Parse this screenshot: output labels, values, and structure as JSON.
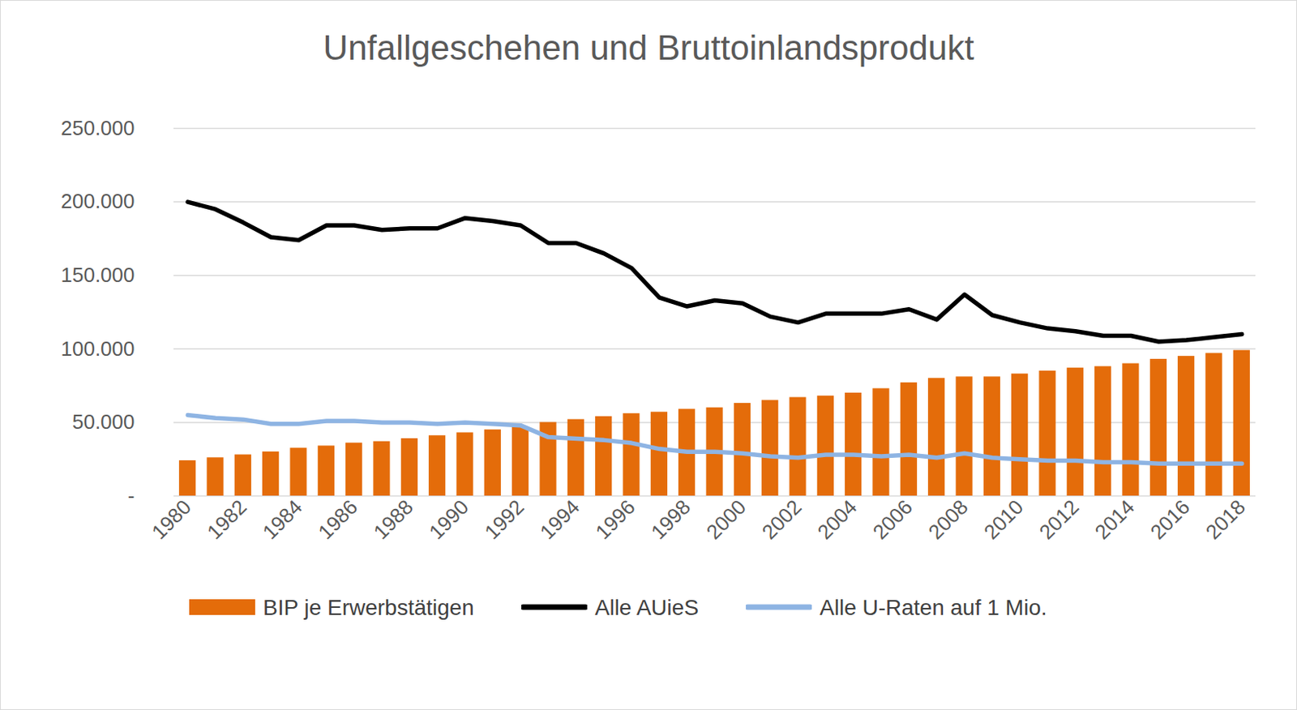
{
  "chart_data": {
    "type": "bar",
    "title": "Unfallgeschehen und Bruttoinlandsprodukt",
    "categories": [
      "1980",
      null,
      "1982",
      null,
      "1984",
      null,
      "1986",
      null,
      "1988",
      null,
      "1990",
      null,
      "1992",
      null,
      "1994",
      null,
      "1996",
      null,
      "1998",
      null,
      "2000",
      null,
      "2002",
      null,
      "2004",
      null,
      "2006",
      null,
      "2008",
      null,
      "2010",
      null,
      "2012",
      null,
      "2014",
      null,
      "2016",
      null,
      "2018"
    ],
    "series": [
      {
        "name": "BIP je Erwerbstätigen",
        "type": "bar",
        "color": "#e46c0a",
        "values": [
          24000,
          26000,
          28000,
          30000,
          32500,
          34000,
          36000,
          37000,
          39000,
          41000,
          43000,
          45000,
          47000,
          50000,
          52000,
          54000,
          56000,
          57000,
          59000,
          60000,
          63000,
          65000,
          67000,
          68000,
          70000,
          73000,
          77000,
          80000,
          81000,
          81000,
          83000,
          85000,
          87000,
          88000,
          90000,
          93000,
          95000,
          97000,
          99000
        ]
      },
      {
        "name": "Alle AUieS",
        "type": "line",
        "color": "#000000",
        "values": [
          200000,
          195000,
          186000,
          176000,
          174000,
          184000,
          184000,
          181000,
          182000,
          182000,
          189000,
          187000,
          184000,
          172000,
          172000,
          165000,
          155000,
          135000,
          129000,
          133000,
          131000,
          122000,
          118000,
          124000,
          124000,
          124000,
          127000,
          120000,
          137000,
          123000,
          118000,
          114000,
          112000,
          109000,
          109000,
          105000,
          106000,
          108000,
          110000
        ]
      },
      {
        "name": "Alle U-Raten auf 1 Mio.",
        "type": "line",
        "color": "#8eb4e3",
        "values": [
          55000,
          53000,
          52000,
          49000,
          49000,
          51000,
          51000,
          50000,
          50000,
          49000,
          50000,
          49000,
          48000,
          40000,
          39000,
          38000,
          36000,
          32000,
          30000,
          30000,
          29000,
          27000,
          26000,
          28000,
          28000,
          27000,
          28000,
          26000,
          29000,
          26000,
          25000,
          24000,
          24000,
          23000,
          23000,
          22000,
          22000,
          22000,
          22000
        ]
      }
    ],
    "ylim": [
      0,
      250000
    ],
    "yticks": [
      {
        "value": 0,
        "label": "-"
      },
      {
        "value": 50000,
        "label": "50.000"
      },
      {
        "value": 100000,
        "label": "100.000"
      },
      {
        "value": 150000,
        "label": "150.000"
      },
      {
        "value": 200000,
        "label": "200.000"
      },
      {
        "value": 250000,
        "label": "250.000"
      }
    ],
    "grid": true,
    "legend": "bottom"
  }
}
